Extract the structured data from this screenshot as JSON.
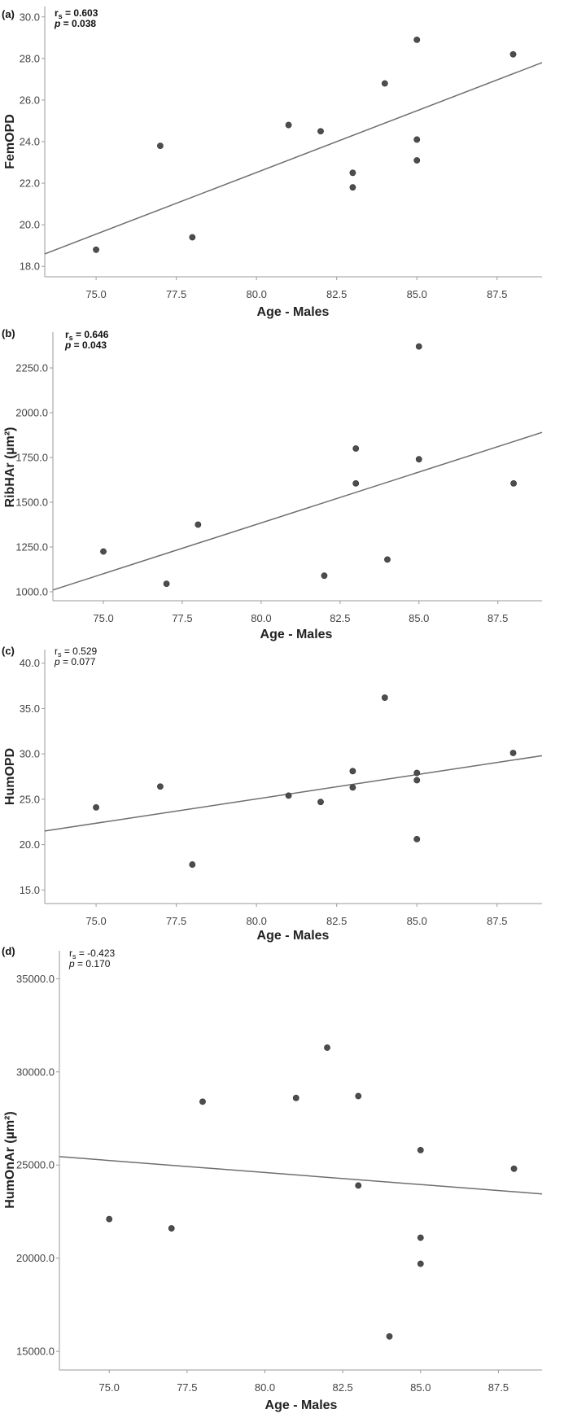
{
  "chart_data": [
    {
      "type": "scatter",
      "panel_label": "(a)",
      "xlabel": "Age - Males",
      "ylabel": "FemOPD",
      "stats": {
        "rs_label": "r",
        "rs_sub": "s",
        "rs_value": " = 0.603",
        "p_label": "p",
        "p_value": " = 0.038",
        "bold": true
      },
      "xlim": [
        73.4,
        88.9
      ],
      "ylim": [
        17.5,
        30.5
      ],
      "x_ticks": [
        "75.0",
        "77.5",
        "80.0",
        "82.5",
        "85.0",
        "87.5"
      ],
      "y_ticks": [
        "18.0",
        "20.0",
        "22.0",
        "24.0",
        "26.0",
        "28.0",
        "30.0"
      ],
      "points": [
        {
          "x": 75,
          "y": 18.8
        },
        {
          "x": 77,
          "y": 23.8
        },
        {
          "x": 78,
          "y": 19.4
        },
        {
          "x": 81,
          "y": 24.8
        },
        {
          "x": 82,
          "y": 24.5
        },
        {
          "x": 83,
          "y": 22.5
        },
        {
          "x": 83,
          "y": 21.8
        },
        {
          "x": 84,
          "y": 26.8
        },
        {
          "x": 85,
          "y": 28.9
        },
        {
          "x": 85,
          "y": 24.1
        },
        {
          "x": 85,
          "y": 23.1
        },
        {
          "x": 88,
          "y": 28.2
        }
      ],
      "fit_line": {
        "x": [
          73.4,
          88.9
        ],
        "y": [
          18.6,
          27.8
        ]
      }
    },
    {
      "type": "scatter",
      "panel_label": "(b)",
      "xlabel": "Age - Males",
      "ylabel": "RibHAr (µm²)",
      "stats": {
        "rs_label": "r",
        "rs_sub": "s",
        "rs_value": " = 0.646",
        "p_label": "p",
        "p_value": " = 0.043",
        "bold": true
      },
      "xlim": [
        73.4,
        88.9
      ],
      "ylim": [
        950,
        2450
      ],
      "x_ticks": [
        "75.0",
        "77.5",
        "80.0",
        "82.5",
        "85.0",
        "87.5"
      ],
      "y_ticks": [
        "1000.0",
        "1250.0",
        "1500.0",
        "1750.0",
        "2000.0",
        "2250.0"
      ],
      "points": [
        {
          "x": 75,
          "y": 1225
        },
        {
          "x": 77,
          "y": 1045
        },
        {
          "x": 78,
          "y": 1375
        },
        {
          "x": 82,
          "y": 1090
        },
        {
          "x": 83,
          "y": 1800
        },
        {
          "x": 83,
          "y": 1605
        },
        {
          "x": 84,
          "y": 1180
        },
        {
          "x": 85,
          "y": 2370
        },
        {
          "x": 85,
          "y": 1740
        },
        {
          "x": 88,
          "y": 1605
        }
      ],
      "fit_line": {
        "x": [
          73.4,
          88.9
        ],
        "y": [
          1010,
          1890
        ]
      }
    },
    {
      "type": "scatter",
      "panel_label": "(c)",
      "xlabel": "Age - Males",
      "ylabel": "HumOPD",
      "stats": {
        "rs_label": "r",
        "rs_sub": "s",
        "rs_value": " = 0.529",
        "p_label": "p",
        "p_value": " = 0.077",
        "bold": false
      },
      "xlim": [
        73.4,
        88.9
      ],
      "ylim": [
        13.5,
        41.5
      ],
      "x_ticks": [
        "75.0",
        "77.5",
        "80.0",
        "82.5",
        "85.0",
        "87.5"
      ],
      "y_ticks": [
        "15.0",
        "20.0",
        "25.0",
        "30.0",
        "35.0",
        "40.0"
      ],
      "points": [
        {
          "x": 75,
          "y": 24.1
        },
        {
          "x": 77,
          "y": 26.4
        },
        {
          "x": 78,
          "y": 17.8
        },
        {
          "x": 81,
          "y": 25.4
        },
        {
          "x": 82,
          "y": 24.7
        },
        {
          "x": 83,
          "y": 28.1
        },
        {
          "x": 83,
          "y": 26.3
        },
        {
          "x": 84,
          "y": 36.2
        },
        {
          "x": 85,
          "y": 27.9
        },
        {
          "x": 85,
          "y": 27.1
        },
        {
          "x": 85,
          "y": 20.6
        },
        {
          "x": 88,
          "y": 30.1
        }
      ],
      "fit_line": {
        "x": [
          73.4,
          88.9
        ],
        "y": [
          21.5,
          29.8
        ]
      }
    },
    {
      "type": "scatter",
      "panel_label": "(d)",
      "xlabel": "Age - Males",
      "ylabel": "HumOnAr (µm²)",
      "stats": {
        "rs_label": "r",
        "rs_sub": "s",
        "rs_value": " = -0.423",
        "p_label": "p",
        "p_value": " = 0.170",
        "bold": false
      },
      "xlim": [
        73.4,
        88.9
      ],
      "ylim": [
        14000,
        36500
      ],
      "x_ticks": [
        "75.0",
        "77.5",
        "80.0",
        "82.5",
        "85.0",
        "87.5"
      ],
      "y_ticks": [
        "15000.0",
        "20000.0",
        "25000.0",
        "30000.0",
        "35000.0"
      ],
      "points": [
        {
          "x": 75,
          "y": 22100
        },
        {
          "x": 77,
          "y": 21600
        },
        {
          "x": 78,
          "y": 28400
        },
        {
          "x": 81,
          "y": 28600
        },
        {
          "x": 82,
          "y": 31300
        },
        {
          "x": 83,
          "y": 28700
        },
        {
          "x": 83,
          "y": 23900
        },
        {
          "x": 84,
          "y": 15800
        },
        {
          "x": 85,
          "y": 25800
        },
        {
          "x": 85,
          "y": 21100
        },
        {
          "x": 85,
          "y": 19700
        },
        {
          "x": 88,
          "y": 24800
        }
      ],
      "fit_line": {
        "x": [
          73.4,
          88.9
        ],
        "y": [
          25450,
          23450
        ]
      }
    }
  ]
}
